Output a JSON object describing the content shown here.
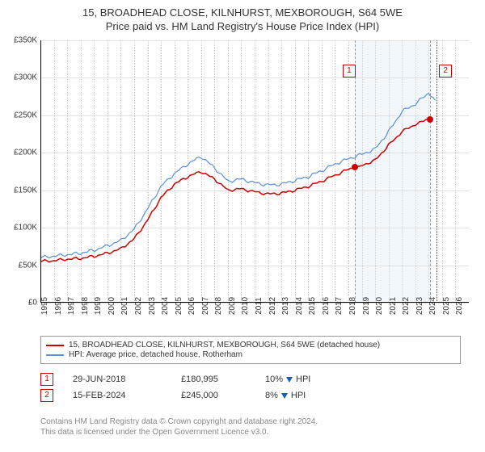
{
  "title_line1": "15, BROADHEAD CLOSE, KILNHURST, MEXBOROUGH, S64 5WE",
  "title_line2": "Price paid vs. HM Land Registry's House Price Index (HPI)",
  "chart": {
    "type": "line",
    "x_min": 1995,
    "x_max": 2027,
    "x_ticks": [
      1995,
      1996,
      1997,
      1998,
      1999,
      2000,
      2001,
      2002,
      2003,
      2004,
      2005,
      2006,
      2007,
      2008,
      2009,
      2010,
      2011,
      2012,
      2013,
      2014,
      2015,
      2016,
      2017,
      2018,
      2019,
      2020,
      2021,
      2022,
      2023,
      2024,
      2025,
      2026
    ],
    "y_min": 0,
    "y_max": 350000,
    "y_ticks": [
      0,
      50000,
      100000,
      150000,
      200000,
      250000,
      300000,
      350000
    ],
    "y_tick_labels": [
      "£0",
      "£50K",
      "£100K",
      "£150K",
      "£200K",
      "£250K",
      "£300K",
      "£350K"
    ],
    "bands": [
      {
        "from": 2018.5,
        "to": 2024.1
      }
    ],
    "markers": [
      {
        "idx": "1",
        "x": 2018.5,
        "box_x": 2018.0,
        "box_y": 310000
      },
      {
        "idx": "2",
        "x": 2024.1,
        "box_x": 2025.2,
        "box_y": 310000
      }
    ],
    "sale_points": [
      {
        "x": 2018.5,
        "y": 180995
      },
      {
        "x": 2024.1,
        "y": 245000
      }
    ],
    "series": [
      {
        "name": "property",
        "color": "#cc0000",
        "width": 1.5,
        "points": [
          [
            1995,
            55000
          ],
          [
            1996,
            56000
          ],
          [
            1997,
            58000
          ],
          [
            1998,
            59000
          ],
          [
            1999,
            62000
          ],
          [
            2000,
            66000
          ],
          [
            2001,
            72000
          ],
          [
            2002,
            85000
          ],
          [
            2003,
            110000
          ],
          [
            2004,
            140000
          ],
          [
            2005,
            158000
          ],
          [
            2006,
            168000
          ],
          [
            2007,
            175000
          ],
          [
            2008,
            165000
          ],
          [
            2009,
            150000
          ],
          [
            2010,
            152000
          ],
          [
            2011,
            148000
          ],
          [
            2012,
            145000
          ],
          [
            2013,
            146000
          ],
          [
            2014,
            150000
          ],
          [
            2015,
            155000
          ],
          [
            2016,
            162000
          ],
          [
            2017,
            170000
          ],
          [
            2018,
            178000
          ],
          [
            2018.5,
            180995
          ],
          [
            2019,
            183000
          ],
          [
            2020,
            190000
          ],
          [
            2021,
            210000
          ],
          [
            2022,
            228000
          ],
          [
            2023,
            238000
          ],
          [
            2024.1,
            245000
          ]
        ]
      },
      {
        "name": "hpi",
        "color": "#5b8fd6",
        "width": 1.2,
        "points": [
          [
            1995,
            60000
          ],
          [
            1996,
            62000
          ],
          [
            1997,
            64000
          ],
          [
            1998,
            66000
          ],
          [
            1999,
            70000
          ],
          [
            2000,
            76000
          ],
          [
            2001,
            83000
          ],
          [
            2002,
            98000
          ],
          [
            2003,
            125000
          ],
          [
            2004,
            155000
          ],
          [
            2005,
            172000
          ],
          [
            2006,
            185000
          ],
          [
            2007,
            195000
          ],
          [
            2008,
            180000
          ],
          [
            2009,
            162000
          ],
          [
            2010,
            165000
          ],
          [
            2011,
            160000
          ],
          [
            2012,
            157000
          ],
          [
            2013,
            158000
          ],
          [
            2014,
            163000
          ],
          [
            2015,
            168000
          ],
          [
            2016,
            176000
          ],
          [
            2017,
            185000
          ],
          [
            2018,
            192000
          ],
          [
            2019,
            198000
          ],
          [
            2020,
            205000
          ],
          [
            2021,
            228000
          ],
          [
            2022,
            255000
          ],
          [
            2023,
            265000
          ],
          [
            2024,
            280000
          ],
          [
            2024.5,
            270000
          ]
        ]
      }
    ],
    "vlines": [
      {
        "x": 2018.5,
        "style": "dashed",
        "color": "#999"
      },
      {
        "x": 2024.1,
        "style": "dashed",
        "color": "#999"
      },
      {
        "x": 2024.6,
        "style": "dotted",
        "color": "#444"
      }
    ],
    "grid_color": "#e0e0e0",
    "background": "#ffffff"
  },
  "legend": {
    "items": [
      {
        "color": "#cc0000",
        "label": "15, BROADHEAD CLOSE, KILNHURST, MEXBOROUGH, S64 5WE (detached house)"
      },
      {
        "color": "#5b8fd6",
        "label": "HPI: Average price, detached house, Rotherham"
      }
    ]
  },
  "events": [
    {
      "idx": "1",
      "date": "29-JUN-2018",
      "price": "£180,995",
      "pct": "10%",
      "dir": "down",
      "suffix": "HPI"
    },
    {
      "idx": "2",
      "date": "15-FEB-2024",
      "price": "£245,000",
      "pct": "8%",
      "dir": "down",
      "suffix": "HPI"
    }
  ],
  "footer": {
    "line1": "Contains HM Land Registry data © Crown copyright and database right 2024.",
    "line2": "This data is licensed under the Open Government Licence v3.0."
  }
}
